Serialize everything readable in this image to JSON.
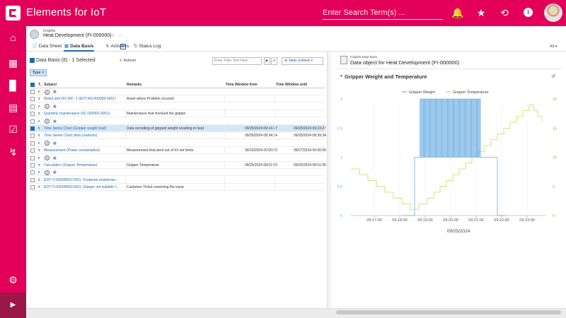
{
  "app": {
    "title": "Elements for IoT",
    "search_placeholder": "Enter Search Term(s) ..."
  },
  "header_icons": [
    "bell-icon",
    "star-icon",
    "history-icon",
    "info-icon"
  ],
  "nav": [
    "home-icon",
    "document-icon",
    "chart-bars-icon",
    "dashboard-icon",
    "checklist-icon",
    "pulse-icon",
    "gear-icon"
  ],
  "object": {
    "type_label": "Insights",
    "title": "Heat Development (FI-000000)"
  },
  "tabs": [
    {
      "label": "Data Sheet",
      "icon": "info-icon"
    },
    {
      "label": "Data Basis",
      "icon": "grid-icon",
      "active": true
    },
    {
      "label": "Activities",
      "icon": "activity-icon"
    },
    {
      "label": "Status Log",
      "icon": "log-icon"
    }
  ],
  "tabs_filter": "All",
  "data_basis": {
    "title": "Data Basis (8) - 1 Selected",
    "refresh_label": "Refresh",
    "filter_placeholder": "Enter Filter Text Here",
    "table_button": "Table (edited)",
    "type_chip": "Type",
    "columns": [
      "T..",
      "Subject",
      "Remarks",
      "Time Window from",
      "Time Window until"
    ],
    "rows": [
      {
        "kind": "group",
        "count": "1"
      },
      {
        "kind": "item",
        "subject": "Robot arm-RV-35F -1 (EDT-AS-000009-0001)",
        "remarks": "Asset where Problem occured",
        "from": "",
        "until": ""
      },
      {
        "kind": "group",
        "count": "1"
      },
      {
        "kind": "item",
        "subject": "Quarterly maintenance (SC-000002-0001)",
        "remarks": "Maintenance that checked the gripper",
        "from": "",
        "until": ""
      },
      {
        "kind": "group",
        "count": "2"
      },
      {
        "kind": "item",
        "selected": true,
        "subject": "Time Series Chart (Gripper weight load)",
        "remarks": "Data recording of gripped weight resulting in heat",
        "from": "09/25/2024 09:14:27",
        "until": "09/25/2024 09:23:27"
      },
      {
        "kind": "item",
        "subject": "Time Series Chart (Axis positions)",
        "remarks": "",
        "from": "09/25/2024 08:34:34",
        "until": "09/25/2024 08:39:34"
      },
      {
        "kind": "group",
        "count": "1"
      },
      {
        "kind": "item",
        "subject": "Measurement (Power consumption)",
        "remarks": "Measurement that went out of it's set limits",
        "from": "09/23/2024 00:00:00",
        "until": "09/27/2024 00:00:00"
      },
      {
        "kind": "group",
        "count": "1"
      },
      {
        "kind": "item",
        "subject": "Calculation (Gripper Temperature)",
        "remarks": "Gripper Temperature",
        "from": "09/25/2024 08:51:50",
        "until": "09/25/2024 08:51:50"
      },
      {
        "kind": "group",
        "count": "2"
      },
      {
        "kind": "item",
        "subject": "EDT-TI-00000002-0001: Postpone maintenan...",
        "remarks": "",
        "from": "",
        "until": ""
      },
      {
        "kind": "item",
        "subject": "EDT-TI-00000000-0001: Gripper not suitable f...",
        "remarks": "Customer Ticket conerning the issue",
        "from": "",
        "until": ""
      }
    ]
  },
  "detail": {
    "type_label": "Insights Data Basis",
    "title": "Data object for Heat Development (FI-000000)",
    "chart_title": "Gripper Weight and Temperature"
  },
  "chart_data": {
    "type": "line",
    "title": "Gripper Weight and Temperature",
    "xlabel": "09/25/2024",
    "x_ticks": [
      "09:17:00",
      "09:18:00",
      "09:19:00",
      "09:20:00",
      "09:21:00",
      "09:22:00",
      "09:23:00"
    ],
    "x_range": [
      "09:16:05",
      "09:23:45"
    ],
    "y_left": {
      "ticks": [
        "0",
        "0.5",
        "1",
        "1.5",
        "2"
      ],
      "range": [
        0,
        2
      ]
    },
    "y_right": {
      "ticks": [
        "0",
        "5",
        "10",
        "15",
        "20"
      ],
      "range": [
        0,
        20
      ]
    },
    "legend_placement": "top-center",
    "series": [
      {
        "name": "Gripper Weight",
        "axis": "left",
        "color": "#6aaee3",
        "description_points": [
          [
            "09:18:05",
            0
          ],
          [
            "09:18:35",
            0
          ],
          [
            "09:18:35",
            1
          ],
          [
            "09:18:48",
            1
          ],
          [
            "09:18:48",
            2
          ],
          [
            "09:21:12",
            2
          ],
          [
            "09:21:12",
            1
          ],
          [
            "09:21:50",
            1
          ],
          [
            "09:21:50",
            0
          ],
          [
            "09:22:10",
            0
          ]
        ],
        "oscillation": {
          "from": "09:18:48",
          "to": "09:21:12",
          "low": 1,
          "high": 2,
          "cycles": 38
        }
      },
      {
        "name": "Gripper Temperature",
        "axis": "right",
        "color": "#c5dc55",
        "points": [
          [
            "09:16:05",
            8
          ],
          [
            "09:16:25",
            7
          ],
          [
            "09:16:45",
            6
          ],
          [
            "09:17:05",
            5
          ],
          [
            "09:17:25",
            4
          ],
          [
            "09:17:45",
            3
          ],
          [
            "09:18:05",
            2
          ],
          [
            "09:18:25",
            1
          ],
          [
            "09:18:45",
            2
          ],
          [
            "09:19:05",
            3
          ],
          [
            "09:19:20",
            4
          ],
          [
            "09:19:35",
            5
          ],
          [
            "09:19:50",
            6
          ],
          [
            "09:20:05",
            7
          ],
          [
            "09:20:20",
            8
          ],
          [
            "09:20:35",
            9
          ],
          [
            "09:20:50",
            10
          ],
          [
            "09:21:05",
            11
          ],
          [
            "09:21:20",
            12
          ],
          [
            "09:21:35",
            13
          ],
          [
            "09:21:50",
            14
          ],
          [
            "09:22:05",
            15
          ],
          [
            "09:22:20",
            16
          ],
          [
            "09:22:35",
            17
          ],
          [
            "09:22:50",
            18
          ],
          [
            "09:23:05",
            19
          ],
          [
            "09:23:15",
            18
          ],
          [
            "09:23:25",
            17
          ],
          [
            "09:23:35",
            16
          ]
        ]
      }
    ]
  }
}
